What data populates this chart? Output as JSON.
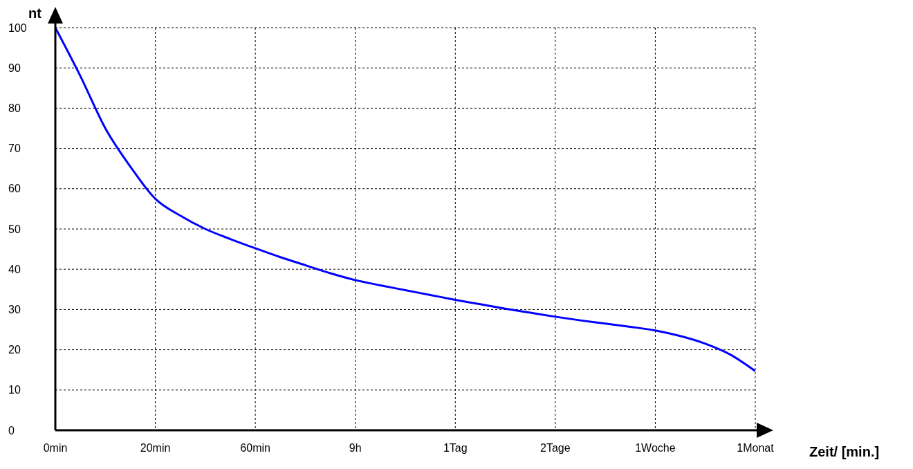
{
  "chart_data": {
    "type": "line",
    "ylabel": "nt",
    "xlabel": "Zeit/ [min.]",
    "categories": [
      "0min",
      null,
      null,
      null,
      "20min",
      null,
      null,
      null,
      "60min",
      null,
      null,
      null,
      "9h",
      null,
      null,
      null,
      "1Tag",
      null,
      null,
      null,
      "2Tage",
      null,
      null,
      null,
      "1Woche",
      null,
      null,
      null,
      "1Monat"
    ],
    "series": [
      {
        "color": "#0000ff",
        "values": [
          100,
          88,
          75,
          65.5,
          57.5,
          53.3,
          50,
          47.5,
          45.2,
          43,
          41,
          39,
          37.3,
          36,
          34.8,
          33.6,
          32.4,
          31.3,
          30.2,
          29.2,
          28.2,
          27.3,
          26.5,
          25.7,
          24.8,
          23.4,
          21.5,
          18.8,
          14.7
        ]
      }
    ],
    "ylim": [
      0,
      100
    ],
    "yticks": [
      0,
      10,
      20,
      30,
      40,
      50,
      60,
      70,
      80,
      90,
      100
    ],
    "grid": true,
    "legend": false,
    "marker": "none",
    "line_style": "solid"
  }
}
